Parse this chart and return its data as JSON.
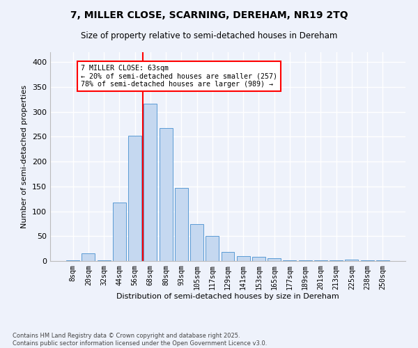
{
  "title1": "7, MILLER CLOSE, SCARNING, DEREHAM, NR19 2TQ",
  "title2": "Size of property relative to semi-detached houses in Dereham",
  "xlabel": "Distribution of semi-detached houses by size in Dereham",
  "ylabel": "Number of semi-detached properties",
  "footer1": "Contains HM Land Registry data © Crown copyright and database right 2025.",
  "footer2": "Contains public sector information licensed under the Open Government Licence v3.0.",
  "bin_labels": [
    "8sqm",
    "20sqm",
    "32sqm",
    "44sqm",
    "56sqm",
    "68sqm",
    "80sqm",
    "93sqm",
    "105sqm",
    "117sqm",
    "129sqm",
    "141sqm",
    "153sqm",
    "165sqm",
    "177sqm",
    "189sqm",
    "201sqm",
    "213sqm",
    "225sqm",
    "238sqm",
    "250sqm"
  ],
  "bar_values": [
    2,
    15,
    2,
    117,
    252,
    317,
    267,
    147,
    74,
    50,
    18,
    10,
    8,
    6,
    2,
    1,
    1,
    1,
    3,
    2,
    1
  ],
  "bar_color": "#c5d8f0",
  "bar_edgecolor": "#5b9bd5",
  "property_label": "7 MILLER CLOSE: 63sqm",
  "pct_smaller": 20,
  "n_smaller": 257,
  "pct_larger": 78,
  "n_larger": 989,
  "vline_x_index": 4.5,
  "vline_color": "red",
  "annotation_box_color": "red",
  "ylim": [
    0,
    420
  ],
  "yticks": [
    0,
    50,
    100,
    150,
    200,
    250,
    300,
    350,
    400
  ],
  "background_color": "#eef2fb"
}
